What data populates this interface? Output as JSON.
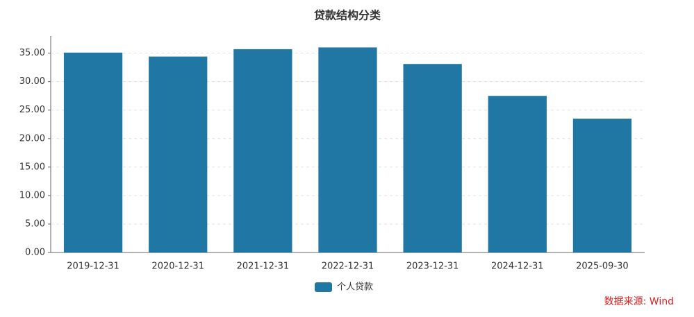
{
  "chart_data": {
    "type": "bar",
    "title": "贷款结构分类",
    "categories": [
      "2019-12-31",
      "2020-12-31",
      "2021-12-31",
      "2022-12-31",
      "2023-12-31",
      "2024-12-31",
      "2025-09-30"
    ],
    "series": [
      {
        "name": "个人贷款",
        "color": "#2177a4",
        "values": [
          35.1,
          34.4,
          35.7,
          36.0,
          33.1,
          27.5,
          23.5
        ]
      }
    ],
    "ylim": [
      0,
      38
    ],
    "yticks": [
      {
        "value": 0,
        "label": "0.00"
      },
      {
        "value": 5,
        "label": "5.00"
      },
      {
        "value": 10,
        "label": "10.00"
      },
      {
        "value": 15,
        "label": "15.00"
      },
      {
        "value": 20,
        "label": "20.00"
      },
      {
        "value": 25,
        "label": "25.00"
      },
      {
        "value": 30,
        "label": "30.00"
      },
      {
        "value": 35,
        "label": "35.00"
      }
    ],
    "grid": true,
    "source": "数据来源: Wind"
  }
}
